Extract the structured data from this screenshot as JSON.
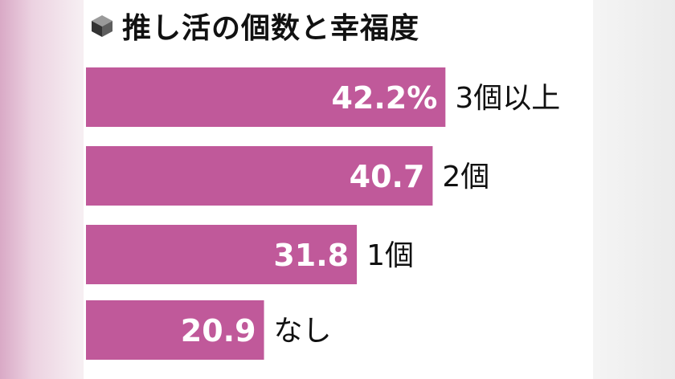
{
  "chart_data": {
    "type": "bar",
    "orientation": "horizontal",
    "title": "推し活の個数と幸福度",
    "categories": [
      "3個以上",
      "2個",
      "1個",
      "なし"
    ],
    "values": [
      42.2,
      40.7,
      31.8,
      20.9
    ],
    "value_labels": [
      "42.2%",
      "40.7",
      "31.8",
      "20.9"
    ],
    "bar_color": "#c0599a",
    "xlim": [
      0,
      45
    ],
    "grid": false,
    "legend": "none"
  }
}
